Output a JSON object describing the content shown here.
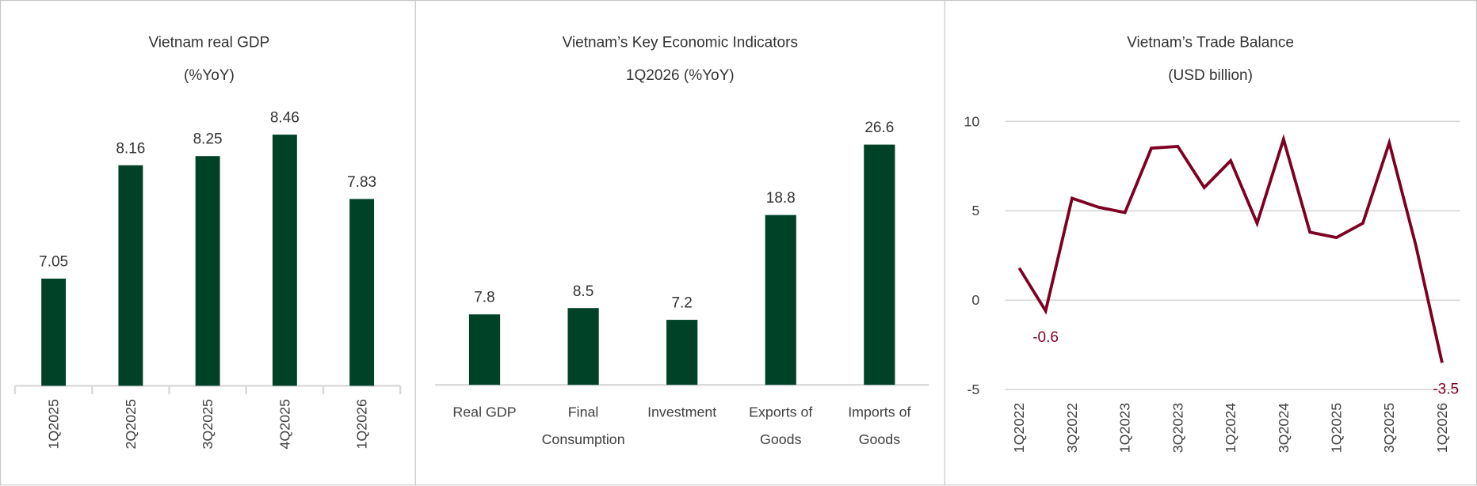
{
  "chart_data": [
    {
      "type": "bar",
      "title": "Vietnam real GDP",
      "subtitle": "(%YoY)",
      "categories": [
        "1Q2025",
        "2Q2025",
        "3Q2025",
        "4Q2025",
        "1Q2026"
      ],
      "values": [
        7.05,
        8.16,
        8.25,
        8.46,
        7.83
      ],
      "data_labels": [
        "7.05",
        "8.16",
        "8.25",
        "8.46",
        "7.83"
      ],
      "ylim": [
        6,
        9
      ],
      "grid": false,
      "color": "#004228"
    },
    {
      "type": "bar",
      "title": "Vietnam’s Key Economic Indicators",
      "subtitle": "1Q2026 (%YoY)",
      "categories": [
        [
          "Real GDP"
        ],
        [
          "Final",
          "Consumption"
        ],
        [
          "Investment"
        ],
        [
          "Exports of",
          "Goods"
        ],
        [
          "Imports of",
          "Goods"
        ]
      ],
      "values": [
        7.8,
        8.5,
        7.2,
        18.8,
        26.6
      ],
      "data_labels": [
        "7.8",
        "8.5",
        "7.2",
        "18.8",
        "26.6"
      ],
      "ylim": [
        0,
        30
      ],
      "grid": false,
      "color": "#004228"
    },
    {
      "type": "line",
      "title": "Vietnam’s Trade Balance",
      "subtitle": "(USD billion)",
      "x": [
        "1Q2022",
        "2Q2022",
        "3Q2022",
        "4Q2022",
        "1Q2023",
        "2Q2023",
        "3Q2023",
        "4Q2023",
        "1Q2024",
        "2Q2024",
        "3Q2024",
        "4Q2024",
        "1Q2025",
        "2Q2025",
        "3Q2025",
        "4Q2025",
        "1Q2026"
      ],
      "x_tick_labels": [
        "1Q2022",
        "3Q2022",
        "1Q2023",
        "3Q2023",
        "1Q2024",
        "3Q2024",
        "1Q2025",
        "3Q2025",
        "1Q2026"
      ],
      "values": [
        1.8,
        -0.6,
        5.7,
        5.2,
        4.9,
        8.5,
        8.6,
        6.3,
        7.8,
        4.3,
        9.0,
        3.8,
        3.5,
        4.3,
        8.8,
        3.1,
        -3.5
      ],
      "annotations": [
        {
          "x": "2Q2022",
          "text": "-0.6"
        },
        {
          "x": "1Q2026",
          "text": "-3.5"
        }
      ],
      "yticks": [
        "10",
        "5",
        "0",
        "-5"
      ],
      "ylim": [
        -5,
        10
      ],
      "grid": true,
      "color": "#7d0022"
    }
  ]
}
